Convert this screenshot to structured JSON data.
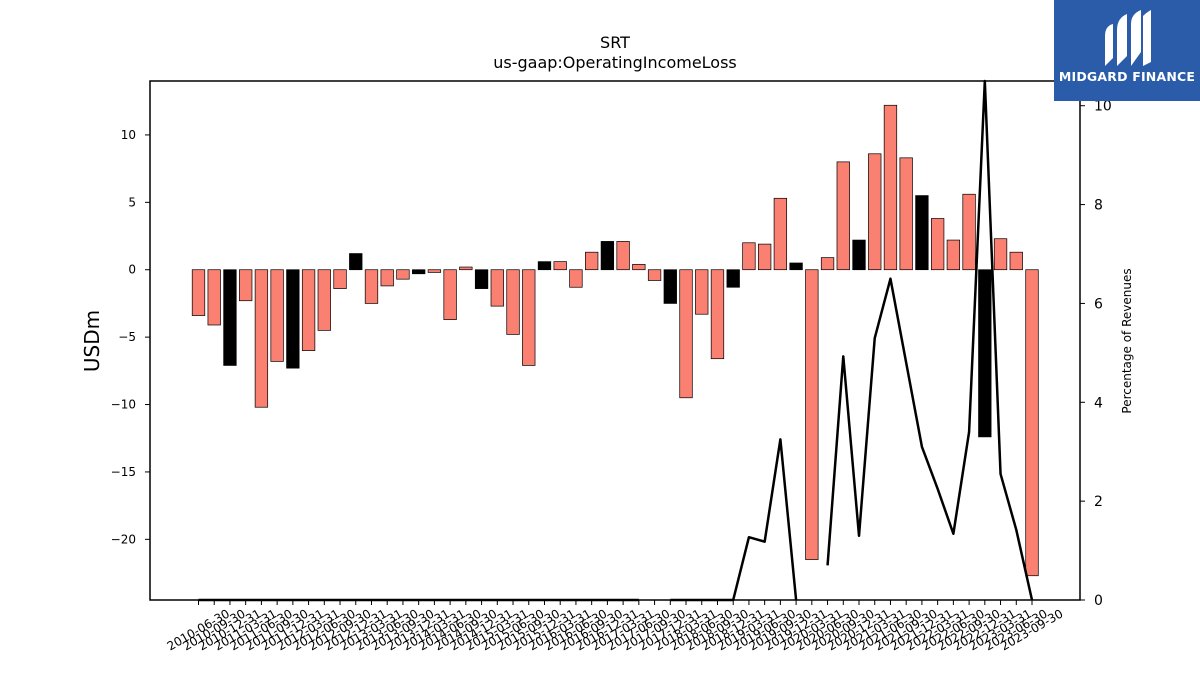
{
  "chart_data": {
    "type": "bar+line",
    "title": "SRT",
    "subtitle": "us-gaap:OperatingIncomeLoss",
    "ylabel": "USDm",
    "y2label": "Percentage of Revenues",
    "ylim": [
      -24.5,
      14
    ],
    "y2lim": [
      0,
      10.5
    ],
    "yticks": [
      -20,
      -15,
      -10,
      -5,
      0,
      5,
      10
    ],
    "y2ticks": [
      0,
      2,
      4,
      6,
      8,
      10
    ],
    "categories": [
      "2010-06-30",
      "2010-09-30",
      "2010-12-31",
      "2011-03-31",
      "2011-06-30",
      "2011-09-30",
      "2011-12-31",
      "2012-03-31",
      "2012-06-30",
      "2012-09-30",
      "2012-12-31",
      "2013-03-31",
      "2013-06-30",
      "2013-09-30",
      "2013-12-31",
      "2014-03-31",
      "2014-06-30",
      "2014-09-30",
      "2014-12-31",
      "2015-03-31",
      "2015-06-30",
      "2015-09-30",
      "2015-12-31",
      "2016-03-31",
      "2016-06-30",
      "2016-09-30",
      "2016-12-31",
      "2017-03-31",
      "2017-06-30",
      "2017-09-30",
      "2017-12-31",
      "2018-03-31",
      "2018-06-30",
      "2018-09-30",
      "2018-12-31",
      "2019-03-31",
      "2019-06-30",
      "2019-09-30",
      "2019-12-31",
      "2020-03-31",
      "2020-06-30",
      "2020-09-30",
      "2020-12-31",
      "2021-03-31",
      "2021-06-30",
      "2021-09-30",
      "2021-12-31",
      "2022-03-31",
      "2022-06-30",
      "2022-09-30",
      "2022-12-31",
      "2023-03-31",
      "2023-06-30",
      "2023-09-30"
    ],
    "xtick_labels": [
      "2010-06-30",
      "2010-09-30",
      "2010-12-31",
      "2011-03-31",
      "2011-06-30",
      "2011-09-30",
      "2011-12-31",
      "2012-03-31",
      "2012-06-30",
      "2012-09-30",
      "2012-12-31",
      "2013-03-31",
      "2013-06-30",
      "2013-09-30",
      "2013-12-31",
      "2014-03-31",
      "2014-06-30",
      "2014-09-30",
      "2014-12-31",
      "2015-03-31",
      "2015-06-30",
      "2015-09-30",
      "2015-12-31",
      "2016-03-31",
      "2016-06-30",
      "2016-09-30",
      "2016-12-31",
      "2017-03-31",
      "2017-06-30",
      "2017-09-30",
      "2017-12-31",
      "2018-03-31",
      "2018-06-30",
      "2018-09-30",
      "2018-12-31",
      "2019-03-31",
      "2019-06-30",
      "2019-09-30",
      "2019-12-31",
      "2020-03-31",
      "2020-06-30",
      "2020-09-30",
      "2020-12-31",
      "2021-03-31",
      "2021-06-30",
      "2021-09-30",
      "2021-12-31",
      "2022-03-31",
      "2022-06-30",
      "2022-09-30",
      "2022-12-31",
      "2023-03-31",
      "2023-06-30",
      "2023-09-30"
    ],
    "operating_income": [
      -3.4,
      -4.1,
      -7.1,
      -2.3,
      -10.2,
      -6.8,
      -7.3,
      -6.0,
      -4.5,
      -1.4,
      1.2,
      -2.5,
      -1.2,
      -0.7,
      -0.3,
      -0.2,
      -3.7,
      0.2,
      -1.4,
      -2.7,
      -4.8,
      -7.1,
      0.6,
      0.6,
      -1.3,
      1.3,
      2.1,
      2.1,
      0.4,
      -0.8,
      -2.5,
      -9.5,
      -3.3,
      -6.6,
      -1.3,
      2.0,
      1.9,
      5.3,
      0.5,
      -21.5,
      0.9,
      8.0,
      2.2,
      8.6,
      12.2,
      8.3,
      5.5,
      3.8,
      2.2,
      5.6,
      -12.4,
      2.3,
      1.3,
      -22.7
    ],
    "bar_colors": [
      "#fa8072",
      "#fa8072",
      "#000000",
      "#fa8072",
      "#fa8072",
      "#fa8072",
      "#000000",
      "#fa8072",
      "#fa8072",
      "#fa8072",
      "#000000",
      "#fa8072",
      "#fa8072",
      "#fa8072",
      "#000000",
      "#fa8072",
      "#fa8072",
      "#fa8072",
      "#000000",
      "#fa8072",
      "#fa8072",
      "#fa8072",
      "#000000",
      "#fa8072",
      "#fa8072",
      "#fa8072",
      "#000000",
      "#fa8072",
      "#fa8072",
      "#fa8072",
      "#000000",
      "#fa8072",
      "#fa8072",
      "#fa8072",
      "#000000",
      "#fa8072",
      "#fa8072",
      "#fa8072",
      "#000000",
      "#fa8072",
      "#fa8072",
      "#fa8072",
      "#000000",
      "#fa8072",
      "#fa8072",
      "#fa8072",
      "#000000",
      "#fa8072",
      "#fa8072",
      "#fa8072",
      "#000000",
      "#fa8072",
      "#fa8072",
      "#fa8072"
    ],
    "percentage_of_revenues": [
      0,
      0,
      0,
      0,
      0,
      0,
      0,
      0,
      0,
      0,
      0,
      0,
      0,
      0,
      0,
      0,
      0,
      0,
      0,
      0,
      0,
      0,
      0,
      0,
      0,
      0,
      0,
      0,
      0,
      null,
      0,
      0,
      0,
      0,
      0,
      1.27,
      1.18,
      3.25,
      0,
      null,
      0.7,
      4.93,
      1.3,
      5.3,
      6.5,
      4.8,
      3.1,
      2.25,
      1.34,
      3.4,
      10.5,
      2.55,
      1.42,
      0
    ],
    "grid": false,
    "legend": "none"
  },
  "logo": {
    "text": "MIDGARD FINANCE",
    "icon": "midgard-logo-icon",
    "background": "#2a5caa"
  }
}
